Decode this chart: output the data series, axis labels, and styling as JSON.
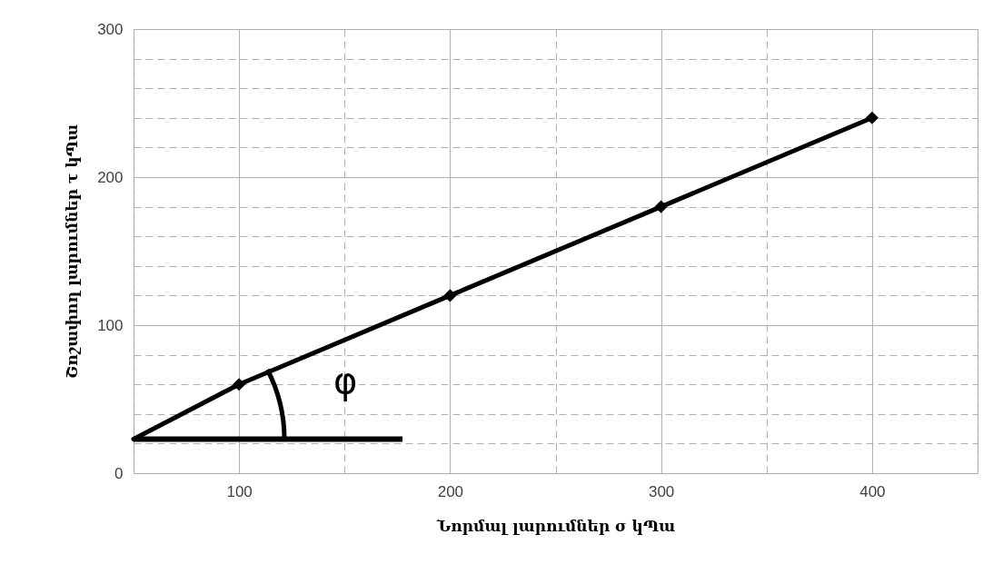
{
  "chart_data": {
    "type": "line",
    "xlabel": "Նորմալ լարումներ σ կՊա",
    "ylabel": "Շոշափող լարումներ τ կՊա",
    "annotations": [
      "φ"
    ],
    "series": [
      {
        "x": [
          50,
          100
        ],
        "values": [
          23,
          60
        ],
        "color": "#000000"
      },
      {
        "x": [
          100,
          200,
          300,
          400
        ],
        "values": [
          60,
          120,
          180,
          240
        ],
        "color": "#000000",
        "marker": "diamond"
      }
    ],
    "xlim": [
      50,
      450
    ],
    "xticks": [
      {
        "value": 50,
        "label": null
      },
      100,
      {
        "value": 150,
        "label": null
      },
      200,
      {
        "value": 250,
        "label": null
      },
      300,
      {
        "value": 350,
        "label": null
      },
      400,
      {
        "value": 450,
        "label": null
      }
    ],
    "ylim": [
      0,
      300
    ],
    "yticks": [
      0,
      {
        "value": 20,
        "label": null
      },
      {
        "value": 40,
        "label": null
      },
      {
        "value": 60,
        "label": null
      },
      {
        "value": 80,
        "label": null
      },
      100,
      {
        "value": 120,
        "label": null
      },
      {
        "value": 140,
        "label": null
      },
      {
        "value": 160,
        "label": null
      },
      {
        "value": 180,
        "label": null
      },
      200,
      {
        "value": 220,
        "label": null
      },
      {
        "value": 240,
        "label": null
      },
      {
        "value": 260,
        "label": null
      },
      {
        "value": 280,
        "label": null
      },
      300
    ],
    "grid": true,
    "line_style": "solid"
  }
}
